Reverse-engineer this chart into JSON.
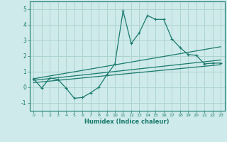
{
  "xlabel": "Humidex (Indice chaleur)",
  "ylabel": "",
  "bg_color": "#ceeaea",
  "line_color": "#1a7a6e",
  "grid_color": "#aed4d0",
  "xlim": [
    -0.5,
    23.5
  ],
  "ylim": [
    -1.5,
    5.5
  ],
  "xticks": [
    0,
    1,
    2,
    3,
    4,
    5,
    6,
    7,
    8,
    9,
    10,
    11,
    12,
    13,
    14,
    15,
    16,
    17,
    18,
    19,
    20,
    21,
    22,
    23
  ],
  "yticks": [
    -1,
    0,
    1,
    2,
    3,
    4,
    5
  ],
  "main_x": [
    0,
    1,
    2,
    3,
    4,
    5,
    6,
    7,
    8,
    9,
    10,
    11,
    12,
    13,
    14,
    15,
    16,
    17,
    18,
    19,
    20,
    21,
    22,
    23
  ],
  "main_y": [
    0.55,
    -0.05,
    0.6,
    0.5,
    -0.05,
    -0.7,
    -0.65,
    -0.35,
    0.0,
    0.8,
    1.5,
    4.9,
    2.8,
    3.5,
    4.6,
    4.35,
    4.35,
    3.1,
    2.55,
    2.1,
    2.05,
    1.5,
    1.55,
    1.55
  ],
  "line2_x": [
    0,
    23
  ],
  "line2_y": [
    0.55,
    2.6
  ],
  "line3_x": [
    0,
    23
  ],
  "line3_y": [
    0.45,
    1.75
  ],
  "line4_x": [
    0,
    23
  ],
  "line4_y": [
    0.3,
    1.45
  ]
}
